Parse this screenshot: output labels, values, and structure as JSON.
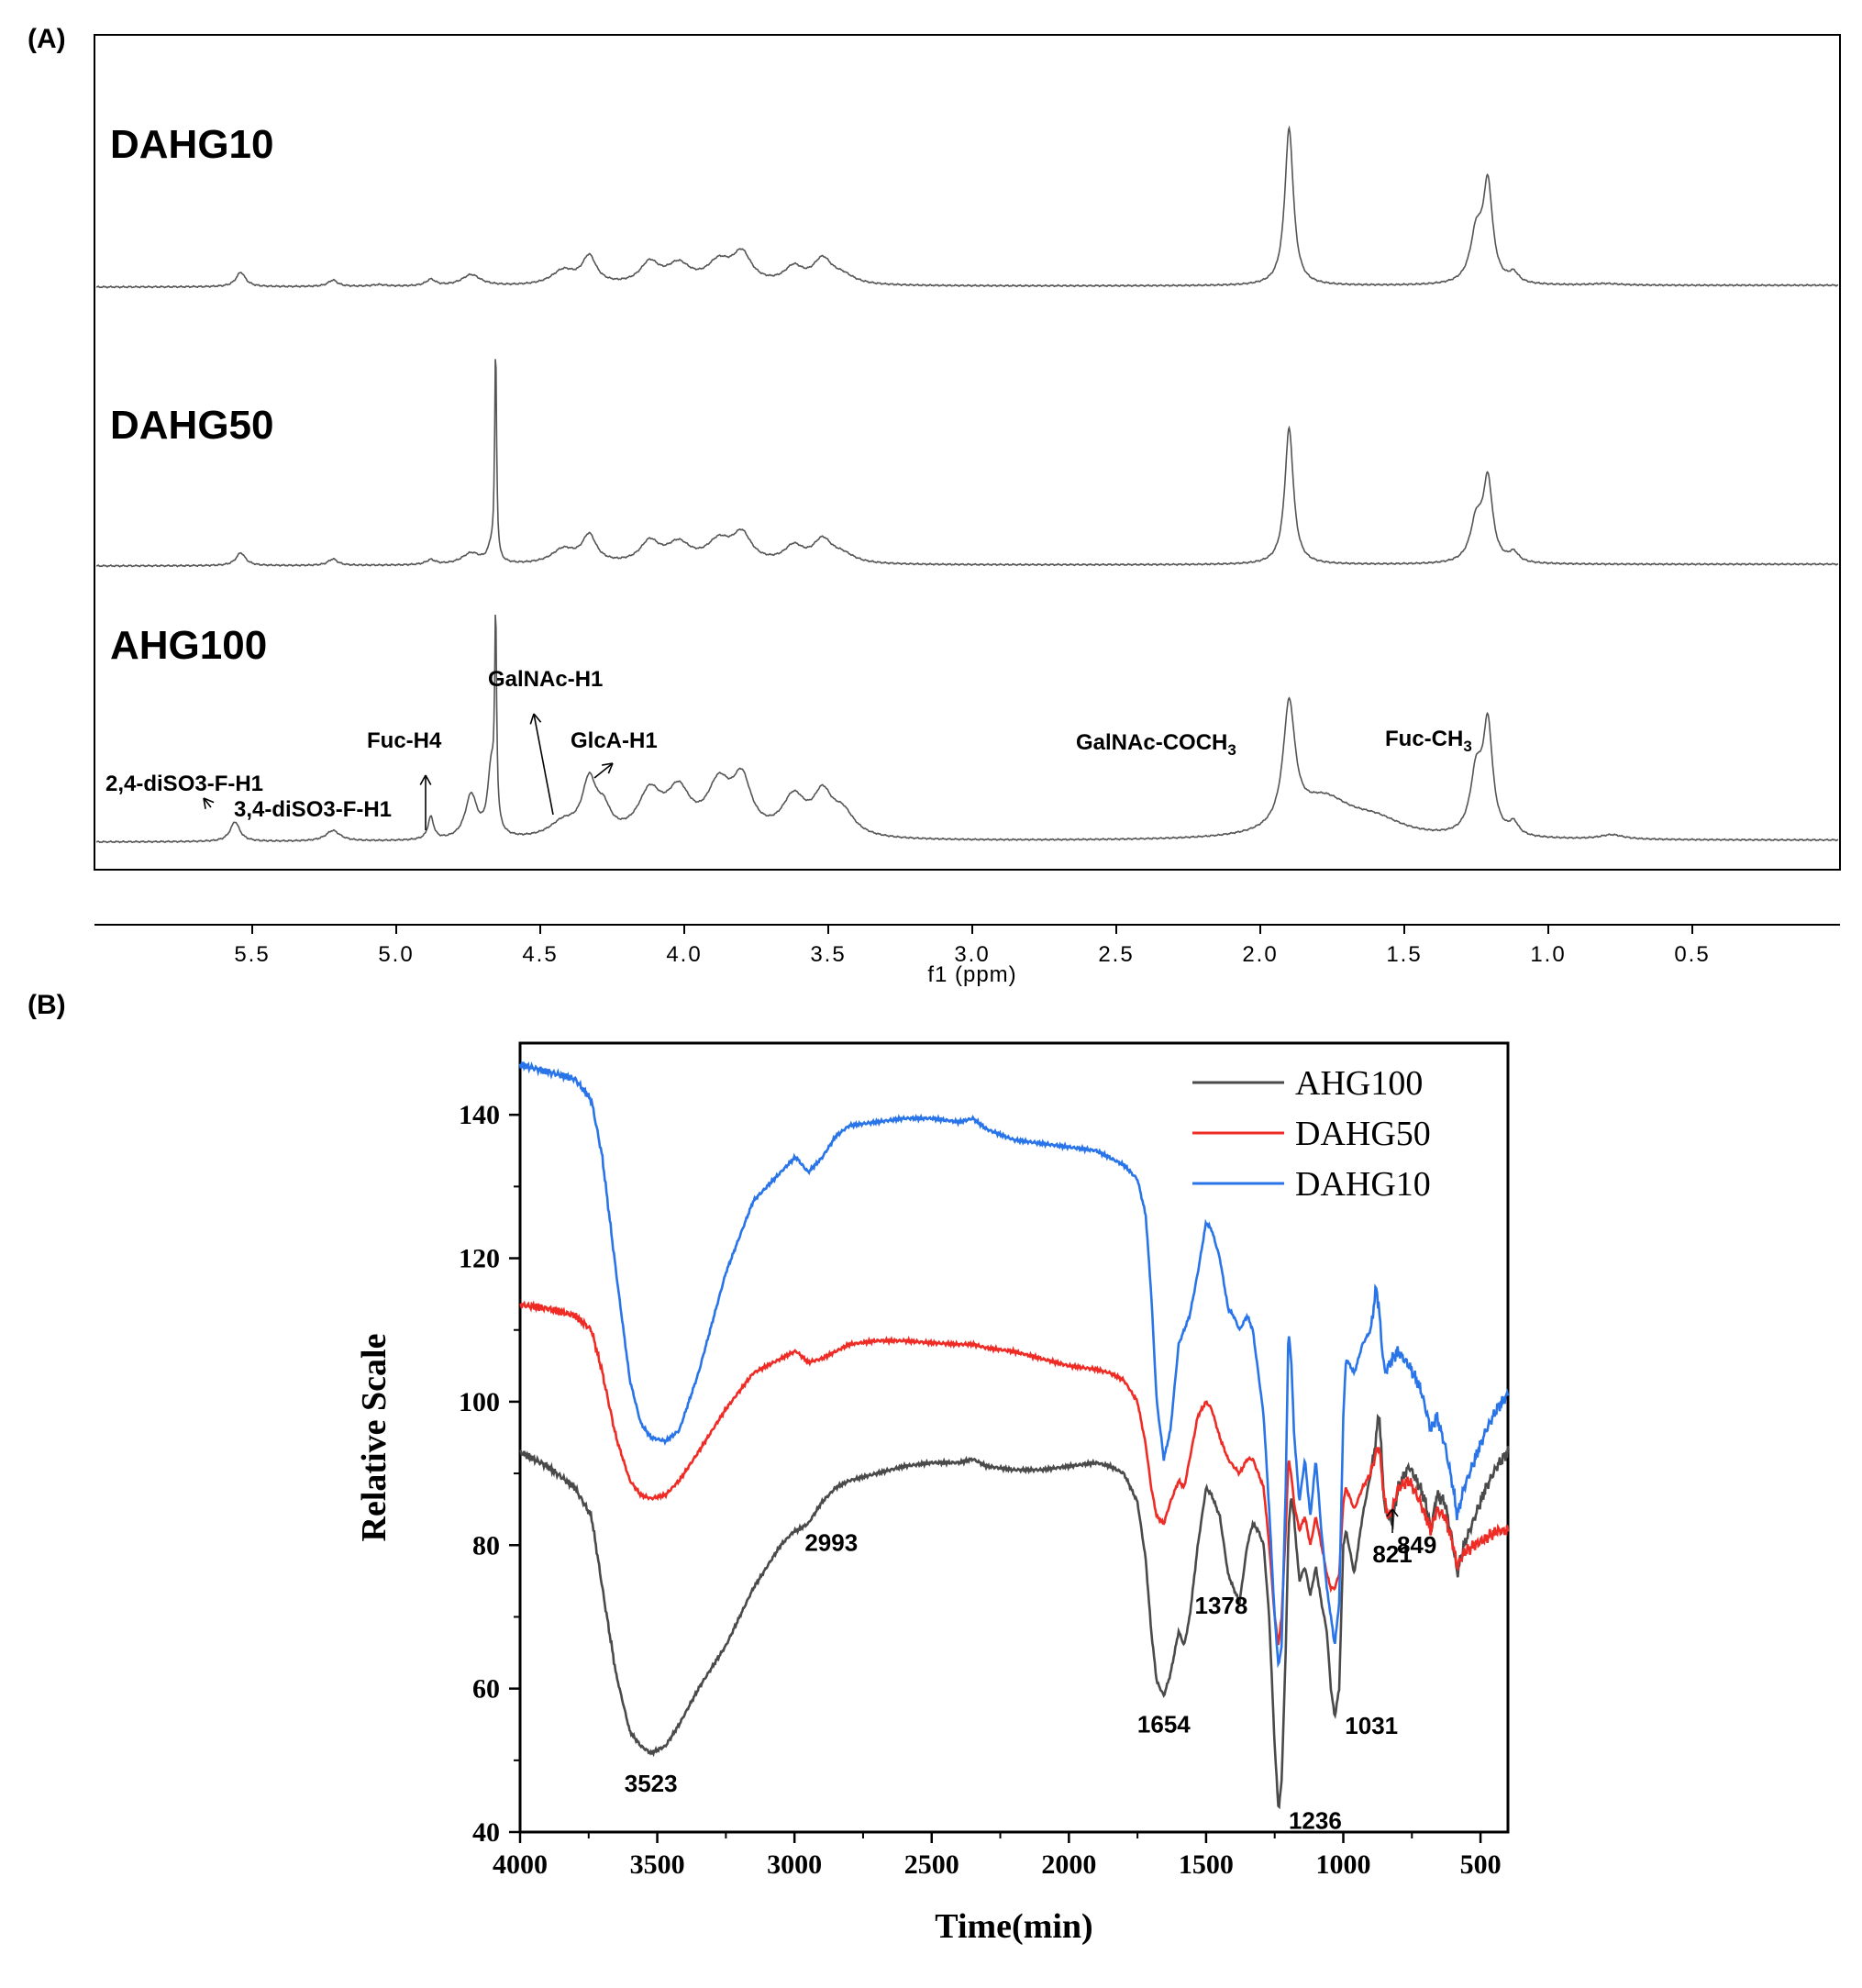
{
  "panel_a_label": "(A)",
  "panel_b_label": "(B)",
  "chart_data": [
    {
      "type": "line",
      "subtype": "1H NMR spectrum (stacked)",
      "xlabel": "f1 (ppm)",
      "xlim": [
        6.0,
        0.0
      ],
      "xticks": [
        "5.5",
        "5.0",
        "4.5",
        "4.0",
        "3.5",
        "3.0",
        "2.5",
        "2.0",
        "1.5",
        "1.0",
        "0.5"
      ],
      "series": [
        {
          "name": "DAHG10",
          "peaks": [
            {
              "ppm": 5.54,
              "h": 0.09,
              "w": 0.02
            },
            {
              "ppm": 5.22,
              "h": 0.04,
              "w": 0.02
            },
            {
              "ppm": 5.06,
              "h": 0.01,
              "w": 0.03
            },
            {
              "ppm": 4.88,
              "h": 0.04,
              "w": 0.02
            },
            {
              "ppm": 4.74,
              "h": 0.07,
              "w": 0.04
            },
            {
              "ppm": 4.42,
              "h": 0.09,
              "w": 0.05
            },
            {
              "ppm": 4.33,
              "h": 0.17,
              "w": 0.03
            },
            {
              "ppm": 4.12,
              "h": 0.13,
              "w": 0.04
            },
            {
              "ppm": 4.02,
              "h": 0.12,
              "w": 0.05
            },
            {
              "ppm": 3.88,
              "h": 0.13,
              "w": 0.05
            },
            {
              "ppm": 3.8,
              "h": 0.18,
              "w": 0.04
            },
            {
              "ppm": 3.62,
              "h": 0.1,
              "w": 0.04
            },
            {
              "ppm": 3.52,
              "h": 0.15,
              "w": 0.04
            },
            {
              "ppm": 3.45,
              "h": 0.05,
              "w": 0.05
            },
            {
              "ppm": 1.9,
              "h": 0.98,
              "w": 0.018
            },
            {
              "ppm": 1.25,
              "h": 0.3,
              "w": 0.025
            },
            {
              "ppm": 1.21,
              "h": 0.6,
              "w": 0.02
            },
            {
              "ppm": 1.12,
              "h": 0.06,
              "w": 0.02
            },
            {
              "ppm": 0.8,
              "h": 0.01,
              "w": 0.06
            }
          ]
        },
        {
          "name": "DAHG50",
          "peaks": [
            {
              "ppm": 5.54,
              "h": 0.08,
              "w": 0.02
            },
            {
              "ppm": 5.22,
              "h": 0.04,
              "w": 0.02
            },
            {
              "ppm": 4.88,
              "h": 0.03,
              "w": 0.02
            },
            {
              "ppm": 4.74,
              "h": 0.07,
              "w": 0.04
            },
            {
              "ppm": 4.67,
              "h": 0.09,
              "w": 0.015
            },
            {
              "ppm": 4.655,
              "h": 1.3,
              "w": 0.004
            },
            {
              "ppm": 4.42,
              "h": 0.09,
              "w": 0.05
            },
            {
              "ppm": 4.33,
              "h": 0.17,
              "w": 0.03
            },
            {
              "ppm": 4.12,
              "h": 0.13,
              "w": 0.04
            },
            {
              "ppm": 4.02,
              "h": 0.12,
              "w": 0.05
            },
            {
              "ppm": 3.88,
              "h": 0.13,
              "w": 0.05
            },
            {
              "ppm": 3.8,
              "h": 0.17,
              "w": 0.04
            },
            {
              "ppm": 3.62,
              "h": 0.1,
              "w": 0.04
            },
            {
              "ppm": 3.52,
              "h": 0.14,
              "w": 0.04
            },
            {
              "ppm": 3.45,
              "h": 0.05,
              "w": 0.05
            },
            {
              "ppm": 1.9,
              "h": 0.85,
              "w": 0.018
            },
            {
              "ppm": 1.25,
              "h": 0.25,
              "w": 0.025
            },
            {
              "ppm": 1.21,
              "h": 0.5,
              "w": 0.02
            },
            {
              "ppm": 1.12,
              "h": 0.06,
              "w": 0.02
            }
          ]
        },
        {
          "name": "AHG100",
          "peaks": [
            {
              "ppm": 5.56,
              "h": 0.13,
              "w": 0.02
            },
            {
              "ppm": 5.22,
              "h": 0.07,
              "w": 0.03
            },
            {
              "ppm": 4.88,
              "h": 0.15,
              "w": 0.012
            },
            {
              "ppm": 4.74,
              "h": 0.29,
              "w": 0.025
            },
            {
              "ppm": 4.67,
              "h": 0.45,
              "w": 0.015
            },
            {
              "ppm": 4.655,
              "h": 1.3,
              "w": 0.004
            },
            {
              "ppm": 4.42,
              "h": 0.1,
              "w": 0.06
            },
            {
              "ppm": 4.33,
              "h": 0.35,
              "w": 0.03
            },
            {
              "ppm": 4.28,
              "h": 0.15,
              "w": 0.03
            },
            {
              "ppm": 4.12,
              "h": 0.28,
              "w": 0.05
            },
            {
              "ppm": 4.02,
              "h": 0.28,
              "w": 0.05
            },
            {
              "ppm": 3.88,
              "h": 0.32,
              "w": 0.05
            },
            {
              "ppm": 3.8,
              "h": 0.34,
              "w": 0.04
            },
            {
              "ppm": 3.62,
              "h": 0.25,
              "w": 0.05
            },
            {
              "ppm": 3.52,
              "h": 0.25,
              "w": 0.04
            },
            {
              "ppm": 3.45,
              "h": 0.15,
              "w": 0.05
            },
            {
              "ppm": 1.9,
              "h": 0.8,
              "w": 0.025
            },
            {
              "ppm": 1.78,
              "h": 0.25,
              "w": 0.12
            },
            {
              "ppm": 1.6,
              "h": 0.1,
              "w": 0.12
            },
            {
              "ppm": 1.25,
              "h": 0.4,
              "w": 0.025
            },
            {
              "ppm": 1.21,
              "h": 0.7,
              "w": 0.02
            },
            {
              "ppm": 1.12,
              "h": 0.08,
              "w": 0.02
            },
            {
              "ppm": 0.78,
              "h": 0.03,
              "w": 0.05
            }
          ]
        }
      ],
      "annotations": [
        {
          "text": "2,4-diSO3-F-H1",
          "ppm": 5.56
        },
        {
          "text": "3,4-diSO3-F-H1",
          "ppm": 5.22
        },
        {
          "text": "Fuc-H4",
          "ppm": 4.88
        },
        {
          "text": "GalNAc-H1",
          "ppm": 4.45
        },
        {
          "text": "GlcA-H1",
          "ppm": 4.28
        },
        {
          "text": "GalNAc-COCH",
          "sub": "3",
          "ppm": 1.9
        },
        {
          "text": "Fuc-CH",
          "sub": "3",
          "ppm": 1.21
        }
      ]
    },
    {
      "type": "line",
      "subtype": "FT-IR spectrum",
      "xlabel": "Time(min)",
      "ylabel": "Relative Scale",
      "xlim": [
        4000,
        400
      ],
      "ylim": [
        40,
        150
      ],
      "xticks": [
        4000,
        3500,
        3000,
        2500,
        2000,
        1500,
        1000,
        500
      ],
      "yticks": [
        40,
        60,
        80,
        100,
        120,
        140
      ],
      "series": [
        {
          "name": "AHG100",
          "color": "#4a4a4a",
          "x": [
            4000,
            3900,
            3800,
            3740,
            3700,
            3650,
            3600,
            3560,
            3523,
            3470,
            3420,
            3350,
            3250,
            3150,
            3050,
            3000,
            2993,
            2950,
            2900,
            2850,
            2800,
            2700,
            2600,
            2500,
            2400,
            2350,
            2300,
            2200,
            2100,
            2000,
            1900,
            1850,
            1800,
            1750,
            1720,
            1700,
            1680,
            1654,
            1630,
            1600,
            1580,
            1560,
            1530,
            1500,
            1480,
            1450,
            1420,
            1400,
            1378,
            1350,
            1330,
            1310,
            1290,
            1270,
            1250,
            1236,
            1225,
            1210,
            1200,
            1190,
            1180,
            1160,
            1140,
            1120,
            1100,
            1080,
            1060,
            1045,
            1031,
            1015,
            1000,
            990,
            960,
            930,
            900,
            880,
            870,
            860,
            849,
            835,
            821,
            800,
            760,
            720,
            700,
            680,
            660,
            630,
            600,
            585,
            560,
            520,
            480,
            440,
            400
          ],
          "y": [
            93,
            91,
            88,
            84,
            74,
            62,
            54,
            52,
            51,
            52,
            55,
            60,
            66,
            74,
            80,
            82,
            82,
            83,
            86,
            88,
            89,
            90,
            91,
            91.5,
            91.5,
            92,
            91,
            90.5,
            90.5,
            91,
            91.5,
            91,
            90,
            86,
            78,
            68,
            61,
            59,
            62,
            68,
            66,
            70,
            80,
            88,
            87,
            84,
            76,
            74,
            72,
            80,
            83,
            82,
            80,
            70,
            52,
            43,
            47,
            65,
            82,
            87,
            84,
            75,
            77,
            73,
            77,
            72,
            68,
            60,
            56,
            60,
            80,
            82,
            76,
            84,
            90,
            95,
            99,
            92,
            85,
            84,
            83,
            88,
            91,
            88,
            86,
            82,
            87,
            86,
            80,
            76,
            80,
            84,
            88,
            91,
            93
          ]
        },
        {
          "name": "DAHG50",
          "color": "#ef2b25",
          "x": [
            4000,
            3900,
            3800,
            3740,
            3700,
            3650,
            3600,
            3560,
            3523,
            3470,
            3420,
            3350,
            3250,
            3150,
            3050,
            3000,
            2993,
            2950,
            2900,
            2850,
            2800,
            2700,
            2600,
            2500,
            2400,
            2350,
            2300,
            2200,
            2100,
            2000,
            1900,
            1850,
            1800,
            1750,
            1720,
            1700,
            1680,
            1654,
            1630,
            1600,
            1580,
            1560,
            1530,
            1500,
            1480,
            1450,
            1420,
            1400,
            1378,
            1350,
            1330,
            1310,
            1290,
            1270,
            1250,
            1236,
            1225,
            1210,
            1200,
            1190,
            1180,
            1160,
            1140,
            1120,
            1100,
            1080,
            1060,
            1045,
            1031,
            1015,
            1000,
            990,
            960,
            930,
            900,
            880,
            870,
            860,
            849,
            835,
            821,
            800,
            760,
            720,
            700,
            680,
            660,
            630,
            600,
            585,
            560,
            520,
            480,
            440,
            400
          ],
          "y": [
            113.5,
            113,
            112,
            110,
            104,
            95,
            89,
            87,
            86.5,
            87,
            89,
            93,
            99,
            104,
            106,
            107,
            107,
            105.5,
            106,
            107,
            108,
            108.5,
            108.5,
            108.2,
            108,
            108,
            107.5,
            107,
            106,
            105,
            104.5,
            104,
            103,
            100,
            94,
            88,
            84,
            83,
            86,
            89,
            88,
            92,
            98,
            100,
            99,
            95,
            92,
            91,
            90,
            92,
            92,
            90,
            88,
            80,
            70,
            66,
            70,
            82,
            92,
            90,
            86,
            82,
            84,
            80,
            84,
            80,
            76,
            74,
            74,
            76,
            86,
            88,
            85,
            88,
            90,
            93,
            94,
            90,
            86,
            84,
            85,
            88,
            89,
            86,
            84,
            82,
            85,
            84,
            80,
            77,
            79,
            80,
            81,
            82,
            82
          ]
        },
        {
          "name": "DAHG10",
          "color": "#2874e8",
          "x": [
            4000,
            3900,
            3800,
            3740,
            3700,
            3650,
            3600,
            3560,
            3523,
            3470,
            3420,
            3350,
            3250,
            3150,
            3050,
            3000,
            2993,
            2950,
            2900,
            2850,
            2800,
            2700,
            2600,
            2500,
            2400,
            2350,
            2300,
            2200,
            2100,
            2000,
            1900,
            1850,
            1800,
            1750,
            1720,
            1700,
            1680,
            1654,
            1630,
            1600,
            1580,
            1560,
            1530,
            1500,
            1480,
            1450,
            1420,
            1400,
            1378,
            1350,
            1330,
            1310,
            1290,
            1270,
            1250,
            1236,
            1225,
            1210,
            1200,
            1190,
            1180,
            1160,
            1140,
            1120,
            1100,
            1080,
            1060,
            1045,
            1031,
            1015,
            1000,
            990,
            960,
            930,
            900,
            880,
            870,
            860,
            849,
            835,
            821,
            800,
            760,
            720,
            700,
            680,
            660,
            630,
            600,
            585,
            560,
            520,
            480,
            440,
            400
          ],
          "y": [
            147,
            146,
            145,
            142,
            134,
            118,
            103,
            97,
            95,
            94.5,
            96,
            104,
            118,
            128,
            132,
            134,
            134,
            132,
            134,
            137,
            138.5,
            139,
            139.5,
            139.5,
            139,
            139.5,
            138,
            136.5,
            136,
            135.5,
            135,
            134,
            133,
            131,
            126,
            115,
            100,
            92,
            96,
            108,
            110,
            112,
            118,
            125,
            124,
            120,
            113,
            112,
            110,
            112,
            110,
            104,
            98,
            85,
            70,
            63,
            66,
            88,
            110,
            106,
            96,
            86,
            92,
            84,
            92,
            82,
            74,
            70,
            66,
            72,
            98,
            106,
            104,
            108,
            110,
            116,
            113,
            108,
            104,
            105,
            106,
            107,
            105,
            102,
            99,
            96,
            98,
            94,
            88,
            84,
            88,
            92,
            96,
            99,
            101
          ]
        }
      ],
      "peak_labels": [
        {
          "text": "3523",
          "x": 3523,
          "y": 51
        },
        {
          "text": "2993",
          "x": 2993,
          "y": 82
        },
        {
          "text": "1654",
          "x": 1654,
          "y": 59
        },
        {
          "text": "1378",
          "x": 1378,
          "y": 72
        },
        {
          "text": "1236",
          "x": 1236,
          "y": 43
        },
        {
          "text": "1031",
          "x": 1031,
          "y": 56
        },
        {
          "text": "821",
          "x": 821,
          "y": 83
        },
        {
          "text": "849",
          "x": 849,
          "y": 84
        }
      ]
    }
  ]
}
